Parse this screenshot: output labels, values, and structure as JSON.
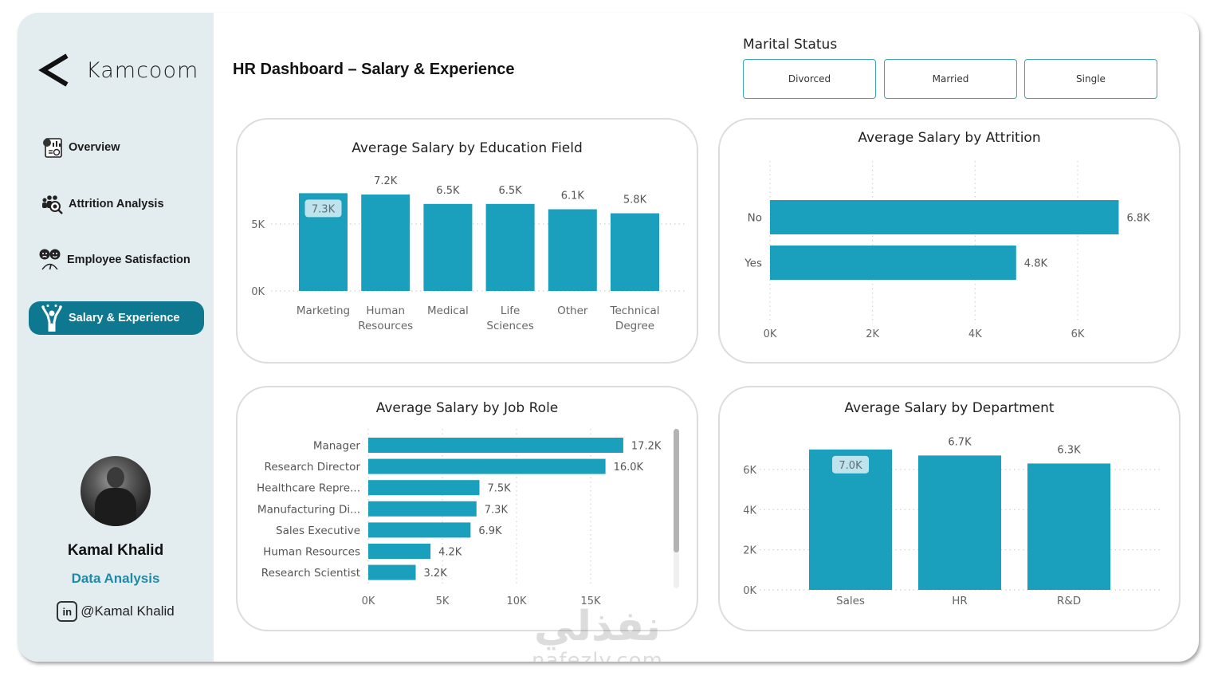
{
  "sidebar": {
    "logo_text": "Kamcoom",
    "nav": [
      {
        "label": "Overview",
        "icon": "overview-icon",
        "active": false
      },
      {
        "label": "Attrition Analysis",
        "icon": "attrition-icon",
        "active": false
      },
      {
        "label": "Employee Satisfaction",
        "icon": "satisfaction-icon",
        "active": false
      },
      {
        "label": "Salary & Experience",
        "icon": "salary-icon",
        "active": true
      }
    ],
    "profile": {
      "name": "Kamal Khalid",
      "role": "Data Analysis",
      "linkedin": "@Kamal Khalid"
    }
  },
  "header": {
    "title": "HR Dashboard – Salary & Experience"
  },
  "marital_status": {
    "title": "Marital Status",
    "options": [
      "Divorced",
      "Married",
      "Single"
    ]
  },
  "colors": {
    "bar": "#1a9fbd",
    "accent": "#0e7891",
    "highlight_label_bg": "#bfe3ec"
  },
  "watermark": {
    "arabic": "نفذلي",
    "latin": "nafezly.com"
  },
  "chart_data": [
    {
      "id": "education",
      "type": "bar",
      "title": "Average Salary by Education Field",
      "categories": [
        "Marketing",
        "Human Resources",
        "Medical",
        "Life Sciences",
        "Other",
        "Technical Degree"
      ],
      "category_lines": [
        [
          "Marketing"
        ],
        [
          "Human",
          "Resources"
        ],
        [
          "Medical"
        ],
        [
          "Life",
          "Sciences"
        ],
        [
          "Other"
        ],
        [
          "Technical",
          "Degree"
        ]
      ],
      "values": [
        7300,
        7200,
        6500,
        6500,
        6100,
        5800
      ],
      "labels": [
        "7.3K",
        "7.2K",
        "6.5K",
        "6.5K",
        "6.1K",
        "5.8K"
      ],
      "highlight_index": 0,
      "yticks": [
        0,
        5000
      ],
      "ytick_labels": [
        "0K",
        "5K"
      ],
      "ylim": [
        0,
        8000
      ],
      "grid": true
    },
    {
      "id": "attrition",
      "type": "bar",
      "orientation": "horizontal",
      "title": "Average Salary by Attrition",
      "categories": [
        "No",
        "Yes"
      ],
      "values": [
        6800,
        4800
      ],
      "labels": [
        "6.8K",
        "4.8K"
      ],
      "xticks": [
        0,
        2000,
        4000,
        6000
      ],
      "xtick_labels": [
        "0K",
        "2K",
        "4K",
        "6K"
      ],
      "xlim": [
        0,
        7000
      ],
      "grid": true
    },
    {
      "id": "jobrole",
      "type": "bar",
      "orientation": "horizontal",
      "title": "Average Salary by Job Role",
      "categories": [
        "Manager",
        "Research Director",
        "Healthcare Repre...",
        "Manufacturing Di...",
        "Sales Executive",
        "Human Resources",
        "Research Scientist"
      ],
      "values": [
        17200,
        16000,
        7500,
        7300,
        6900,
        4200,
        3200
      ],
      "labels": [
        "17.2K",
        "16.0K",
        "7.5K",
        "7.3K",
        "6.9K",
        "4.2K",
        "3.2K"
      ],
      "xticks": [
        0,
        5000,
        10000,
        15000
      ],
      "xtick_labels": [
        "0K",
        "5K",
        "10K",
        "15K"
      ],
      "xlim": [
        0,
        19000
      ],
      "grid": true,
      "scrollbar": true
    },
    {
      "id": "department",
      "type": "bar",
      "title": "Average Salary by Department",
      "categories": [
        "Sales",
        "HR",
        "R&D"
      ],
      "values": [
        7000,
        6700,
        6300
      ],
      "labels": [
        "7.0K",
        "6.7K",
        "6.3K"
      ],
      "highlight_index": 0,
      "yticks": [
        0,
        2000,
        4000,
        6000
      ],
      "ytick_labels": [
        "0K",
        "2K",
        "4K",
        "6K"
      ],
      "ylim": [
        0,
        7000
      ],
      "grid": true
    }
  ]
}
